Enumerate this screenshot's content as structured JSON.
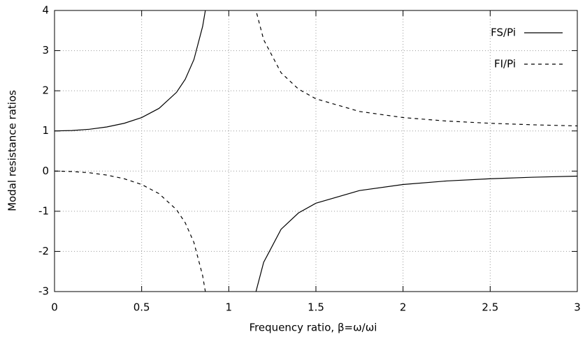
{
  "chart_data": {
    "type": "line",
    "x_label": "Frequency ratio, β=ω/ωi",
    "y_label": "Modal resistance ratios",
    "x": [
      0,
      0.1,
      0.2,
      0.3,
      0.4,
      0.5,
      0.6,
      0.7,
      0.75,
      0.8,
      0.85,
      0.87,
      1,
      1.13,
      1.15,
      1.2,
      1.3,
      1.4,
      1.5,
      1.75,
      2,
      2.25,
      2.5,
      2.75,
      3
    ],
    "series": [
      {
        "name": "FS/Pi",
        "color": "#000000",
        "dash": "solid",
        "values": [
          1,
          1.0101,
          1.0417,
          1.0989,
          1.1905,
          1.3333,
          1.5625,
          1.9608,
          2.2857,
          2.7778,
          3.6036,
          4.1136,
          null,
          -3.6114,
          -3.1008,
          -2.2727,
          -1.4493,
          -1.0417,
          -0.8,
          -0.4848,
          -0.3333,
          -0.2462,
          -0.1905,
          -0.1524,
          -0.125
        ]
      },
      {
        "name": "FI/Pi",
        "color": "#000000",
        "dash": "dashed",
        "values": [
          0,
          -0.0101,
          -0.0417,
          -0.0989,
          -0.1905,
          -0.3333,
          -0.5625,
          -0.9608,
          -1.2857,
          -1.7778,
          -2.6036,
          -3.1136,
          null,
          4.6114,
          4.1008,
          3.2727,
          2.4493,
          2.0417,
          1.8,
          1.4848,
          1.3333,
          1.2462,
          1.1905,
          1.1524,
          1.125
        ]
      }
    ],
    "xlim": [
      0,
      3
    ],
    "xticks": [
      0,
      0.5,
      1,
      1.5,
      2,
      2.5,
      3
    ],
    "ylim": [
      -3,
      4
    ],
    "yticks": [
      -3,
      -2,
      -1,
      0,
      1,
      2,
      3,
      4
    ],
    "grid": true,
    "legend": "upper-right"
  }
}
